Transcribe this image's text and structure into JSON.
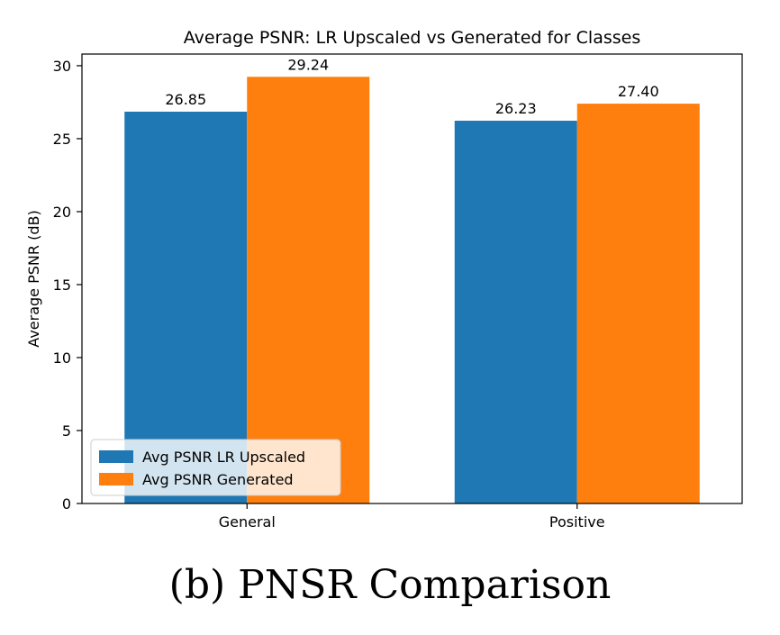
{
  "chart_data": {
    "type": "bar",
    "title": "Average PSNR: LR Upscaled vs Generated for Classes",
    "xlabel": "",
    "ylabel": "Average PSNR (dB)",
    "categories": [
      "General",
      "Positive"
    ],
    "ylim": [
      0,
      30.8
    ],
    "yticks": [
      0,
      5,
      10,
      15,
      20,
      25,
      30
    ],
    "series": [
      {
        "name": "Avg PSNR LR Upscaled",
        "color": "#1f77b4",
        "values": [
          26.85,
          26.23
        ],
        "labels": [
          "26.85",
          "26.23"
        ]
      },
      {
        "name": "Avg PSNR Generated",
        "color": "#ff7f0e",
        "values": [
          29.24,
          27.4
        ],
        "labels": [
          "29.24",
          "27.40"
        ]
      }
    ],
    "grid": false,
    "legend_position": "lower-left"
  },
  "caption": "(b) PNSR Comparison"
}
